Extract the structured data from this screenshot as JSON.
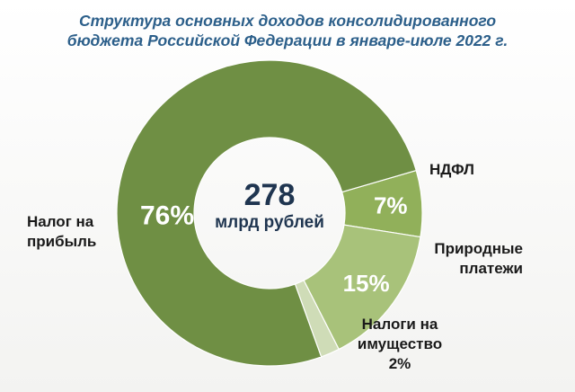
{
  "title_line1": "Структура основных доходов консолидированного",
  "title_line2": "бюджета Российской Федерации в январе-июле 2022 г.",
  "center": {
    "value": "278",
    "unit": "млрд рублей"
  },
  "labels": {
    "profit": {
      "line1": "Налог на",
      "line2": "прибыль"
    },
    "ndfl": "НДФЛ",
    "natural": {
      "line1": "Природные",
      "line2": "платежи"
    },
    "property": {
      "line1": "Налоги на",
      "line2": "имущество",
      "line3": "2%"
    }
  },
  "chart_data": {
    "type": "pie",
    "title": "Структура основных доходов консолидированного бюджета Российской Федерации в январе-июле 2022 г.",
    "total": 278,
    "total_unit": "млрд рублей",
    "slices": [
      {
        "name": "Налог на прибыль",
        "value": 76,
        "label": "76%",
        "color": "#6f8f44"
      },
      {
        "name": "НДФЛ",
        "value": 7,
        "label": "7%",
        "color": "#91b05a"
      },
      {
        "name": "Природные платежи",
        "value": 15,
        "label": "15%",
        "color": "#a8c27a"
      },
      {
        "name": "Налоги на имущество",
        "value": 2,
        "label": "2%",
        "color": "#cfdcb7"
      }
    ]
  }
}
